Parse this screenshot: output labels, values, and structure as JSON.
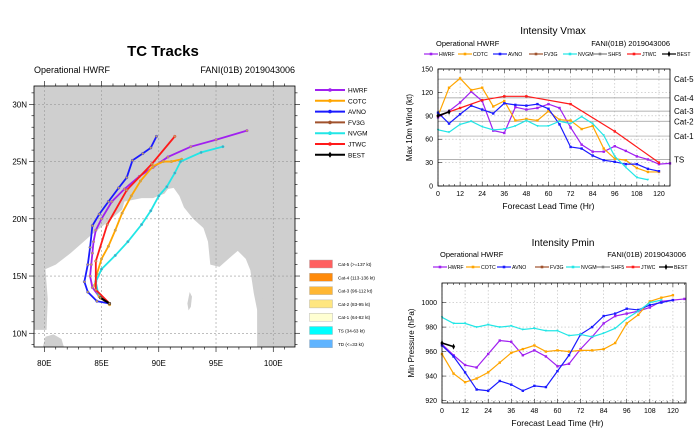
{
  "subtitle_left": "Operational HWRF",
  "subtitle_right": "FANI(01B) 2019043006",
  "colors": {
    "HWRF": "#a020f0",
    "COTC": "#ffa500",
    "AVNO": "#1a1aff",
    "FV3G": "#a0522d",
    "NVGM": "#22e6e6",
    "SHF5": "#808080",
    "JTWC": "#ff1a1a",
    "BEST": "#000000",
    "land": "#cfcfcf",
    "ocean": "#ffffff"
  },
  "chart_data": [
    {
      "type": "line",
      "title": "TC Tracks",
      "xlabel": "",
      "ylabel": "",
      "xlim": [
        79.1,
        101.9
      ],
      "ylim": [
        8.8,
        31.6
      ],
      "x_ticks": [
        80,
        85,
        90,
        95,
        100
      ],
      "x_tick_labels": [
        "80E",
        "85E",
        "90E",
        "95E",
        "100E"
      ],
      "y_ticks": [
        10,
        15,
        20,
        25,
        30
      ],
      "y_tick_labels": [
        "10N",
        "15N",
        "20N",
        "25N",
        "30N"
      ],
      "grid": true,
      "legend": [
        "HWRF",
        "COTC",
        "AVNO",
        "FV3G",
        "NVGM",
        "JTWC",
        "BEST"
      ],
      "series": [
        {
          "name": "HWRF",
          "points": [
            [
              85.7,
              12.6
            ],
            [
              84.8,
              13.2
            ],
            [
              84.2,
              14
            ],
            [
              84.0,
              15
            ],
            [
              84.1,
              16
            ],
            [
              84.2,
              17
            ],
            [
              84.3,
              18
            ],
            [
              84.5,
              19
            ],
            [
              85,
              20
            ],
            [
              85.9,
              21.5
            ],
            [
              87,
              22.6
            ],
            [
              88.3,
              23.7
            ],
            [
              89.5,
              24.5
            ],
            [
              90.8,
              25.4
            ],
            [
              92.8,
              26.3
            ],
            [
              95,
              26.9
            ],
            [
              97.7,
              27.7
            ]
          ]
        },
        {
          "name": "COTC",
          "points": [
            [
              85.7,
              12.5
            ],
            [
              84.8,
              13.2
            ],
            [
              84.4,
              14.2
            ],
            [
              84.6,
              15.2
            ],
            [
              85,
              16.5
            ],
            [
              85.6,
              17.6
            ],
            [
              86.2,
              19
            ],
            [
              86.8,
              20.5
            ],
            [
              87.6,
              22
            ],
            [
              88.4,
              23.3
            ],
            [
              89.5,
              24.6
            ],
            [
              90.4,
              25
            ],
            [
              91.1,
              25
            ],
            [
              92,
              25.2
            ]
          ]
        },
        {
          "name": "AVNO",
          "points": [
            [
              85.7,
              12.6
            ],
            [
              84.6,
              12.8
            ],
            [
              83.8,
              13.6
            ],
            [
              83.5,
              14.5
            ],
            [
              83.8,
              16
            ],
            [
              84.0,
              17.5
            ],
            [
              84.2,
              19.4
            ],
            [
              84.8,
              20.4
            ],
            [
              85.6,
              21.5
            ],
            [
              86.5,
              22.7
            ],
            [
              87.2,
              23.6
            ],
            [
              87.7,
              25.1
            ],
            [
              88.6,
              25.7
            ],
            [
              89.3,
              26.2
            ],
            [
              89.8,
              27.2
            ]
          ]
        },
        {
          "name": "NVGM",
          "points": [
            [
              85.7,
              12.6
            ],
            [
              84.7,
              13.5
            ],
            [
              84.5,
              14.5
            ],
            [
              85,
              15.6
            ],
            [
              86.2,
              16.8
            ],
            [
              87.3,
              18
            ],
            [
              88.5,
              19.5
            ],
            [
              89.3,
              20.7
            ],
            [
              90,
              22
            ],
            [
              90.7,
              22.8
            ],
            [
              91.4,
              24
            ],
            [
              91.9,
              25
            ],
            [
              93.7,
              25.8
            ],
            [
              95.6,
              26.3
            ]
          ]
        },
        {
          "name": "JTWC",
          "points": [
            [
              85.7,
              12.6
            ],
            [
              84.5,
              13.8
            ],
            [
              84.5,
              16.3
            ],
            [
              85.5,
              19.5
            ],
            [
              87.2,
              22.5
            ],
            [
              89.4,
              24.8
            ],
            [
              91.4,
              27.2
            ]
          ]
        },
        {
          "name": "BEST",
          "points": [
            [
              85.7,
              12.6
            ],
            [
              84.9,
              13.1
            ]
          ]
        }
      ],
      "category_legend": [
        {
          "label": "Cat-5 (>=137 kt)",
          "color": "#ff5f5f"
        },
        {
          "label": "Cat-4 (113-136 kt)",
          "color": "#ff8a0a"
        },
        {
          "label": "Cat-3 (96-112 kt)",
          "color": "#ffb733"
        },
        {
          "label": "Cat-2 (83-95 kt)",
          "color": "#ffe680"
        },
        {
          "label": "Cat-1 (64-82 kt)",
          "color": "#ffffd2"
        },
        {
          "label": "TS (34-63 kt)",
          "color": "#00ffff"
        },
        {
          "label": "TD (<=33 kt)",
          "color": "#5fb4ff"
        }
      ]
    },
    {
      "type": "line",
      "title": "Intensity Vmax",
      "xlabel": "Forecast Lead Time (Hr)",
      "ylabel": "Max 10m Wind (kt)",
      "xlim": [
        0,
        126
      ],
      "ylim": [
        0,
        150
      ],
      "x_ticks": [
        0,
        12,
        24,
        36,
        48,
        60,
        72,
        84,
        96,
        108,
        120
      ],
      "y_ticks": [
        0,
        30,
        60,
        90,
        120,
        150
      ],
      "grid": true,
      "legend": [
        "HWRF",
        "COTC",
        "AVNO",
        "FV3G",
        "NVGM",
        "SHF5",
        "JTWC",
        "BEST"
      ],
      "reference_lines": [
        {
          "label": "Cat-5",
          "value": 137
        },
        {
          "label": "Cat-4",
          "value": 113
        },
        {
          "label": "Cat-3",
          "value": 96
        },
        {
          "label": "Cat-2",
          "value": 83
        },
        {
          "label": "Cat-1",
          "value": 64
        },
        {
          "label": "TS",
          "value": 34
        }
      ],
      "series": [
        {
          "name": "HWRF",
          "x": [
            0,
            6,
            12,
            18,
            24,
            30,
            36,
            42,
            48,
            54,
            60,
            66,
            72,
            78,
            84,
            90,
            96,
            102,
            108,
            114,
            120,
            126
          ],
          "values": [
            88,
            96,
            107,
            121,
            109,
            71,
            68,
            101,
            98,
            100,
            105,
            100,
            75,
            53,
            44,
            44,
            51,
            45,
            38,
            34,
            28,
            29
          ]
        },
        {
          "name": "COTC",
          "x": [
            0,
            6,
            12,
            18,
            24,
            30,
            36,
            42,
            48,
            54,
            60,
            66,
            72,
            78,
            84,
            90,
            96,
            102,
            108,
            114,
            120
          ],
          "values": [
            90,
            126,
            138,
            123,
            126,
            102,
            109,
            84,
            86,
            84,
            96,
            85,
            84,
            73,
            77,
            48,
            35,
            33,
            23,
            18,
            18
          ]
        },
        {
          "name": "AVNO",
          "x": [
            0,
            6,
            12,
            18,
            24,
            30,
            36,
            42,
            48,
            54,
            60,
            66,
            72,
            78,
            84,
            90,
            96,
            102,
            108,
            114,
            120
          ],
          "values": [
            94,
            80,
            92,
            103,
            98,
            93,
            106,
            104,
            103,
            105,
            99,
            79,
            50,
            48,
            39,
            33,
            31,
            28,
            28,
            22,
            19
          ]
        },
        {
          "name": "NVGM",
          "x": [
            0,
            6,
            12,
            18,
            24,
            30,
            36,
            42,
            48,
            54,
            60,
            66,
            72,
            78,
            84,
            90,
            96,
            102,
            108,
            114
          ],
          "values": [
            72,
            69,
            79,
            83,
            76,
            72,
            73,
            77,
            84,
            77,
            77,
            83,
            80,
            89,
            80,
            65,
            38,
            24,
            11,
            8
          ]
        },
        {
          "name": "JTWC",
          "x": [
            0,
            12,
            24,
            36,
            48,
            72,
            96,
            120
          ],
          "values": [
            90,
            100,
            110,
            115,
            115,
            105,
            70,
            30
          ]
        },
        {
          "name": "BEST",
          "x": [
            0,
            6
          ],
          "values": [
            90,
            95
          ]
        }
      ]
    },
    {
      "type": "line",
      "title": "Intensity Pmin",
      "xlabel": "Forecast Lead Time (Hr)",
      "ylabel": "Min Pressure (hPa)",
      "xlim": [
        0,
        126.8
      ],
      "ylim": [
        918,
        1016
      ],
      "x_ticks": [
        0,
        12,
        24,
        36,
        48,
        60,
        72,
        84,
        96,
        108,
        120
      ],
      "y_ticks": [
        920,
        940,
        960,
        980,
        1000
      ],
      "grid": true,
      "legend": [
        "HWRF",
        "COTC",
        "AVNO",
        "FV3G",
        "NVGM",
        "SHF5",
        "JTWC",
        "BEST"
      ],
      "series": [
        {
          "name": "HWRF",
          "x": [
            0,
            6,
            12,
            18,
            24,
            30,
            36,
            42,
            48,
            54,
            60,
            66,
            72,
            78,
            84,
            90,
            96,
            102,
            108,
            114,
            120,
            126
          ],
          "values": [
            966,
            957,
            949,
            947,
            958,
            969,
            968,
            957,
            961,
            956,
            948,
            950,
            962,
            972,
            983,
            989,
            991,
            993,
            996,
            1001,
            1002,
            1003
          ]
        },
        {
          "name": "COTC",
          "x": [
            0,
            6,
            12,
            18,
            24,
            30,
            36,
            42,
            48,
            54,
            60,
            66,
            72,
            78,
            84,
            90,
            96,
            102,
            108,
            114,
            120
          ],
          "values": [
            958,
            942,
            935,
            938,
            943,
            951,
            959,
            962,
            965,
            960,
            961,
            960,
            961,
            961,
            962,
            967,
            983,
            990,
            1001,
            1004,
            1006
          ]
        },
        {
          "name": "AVNO",
          "x": [
            0,
            6,
            12,
            18,
            24,
            30,
            36,
            42,
            48,
            54,
            60,
            66,
            72,
            78,
            84,
            90,
            96,
            102,
            108,
            114,
            120
          ],
          "values": [
            965,
            956,
            943,
            929,
            928,
            936,
            933,
            928,
            932,
            931,
            944,
            957,
            974,
            980,
            989,
            991,
            995,
            994,
            998,
            1000,
            1002
          ]
        },
        {
          "name": "NVGM",
          "x": [
            0,
            6,
            12,
            18,
            24,
            30,
            36,
            42,
            48,
            54,
            60,
            66,
            72,
            78,
            84,
            90,
            96,
            102,
            108,
            114
          ],
          "values": [
            988,
            983,
            983,
            980,
            982,
            980,
            981,
            978,
            979,
            977,
            977,
            973,
            974,
            972,
            975,
            979,
            987,
            993,
            1000,
            1002
          ]
        },
        {
          "name": "BEST",
          "x": [
            0,
            6
          ],
          "values": [
            967,
            964
          ]
        }
      ]
    }
  ]
}
